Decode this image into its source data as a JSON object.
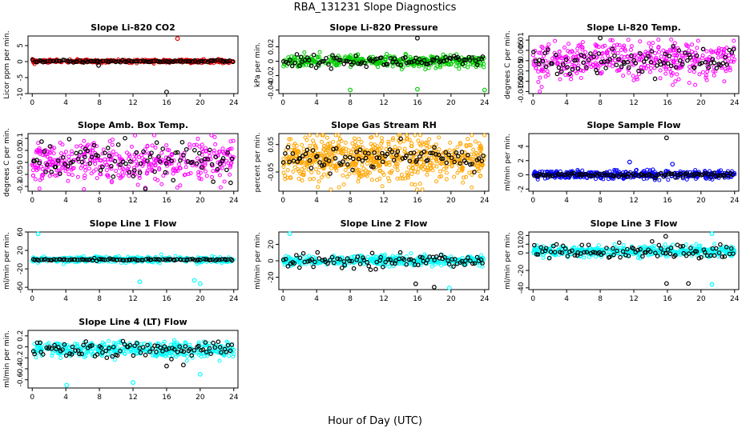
{
  "figure": {
    "title": "RBA_131231  Slope Diagnostics",
    "xlabel": "Hour of Day (UTC)"
  },
  "chart_data": [
    {
      "type": "scatter",
      "title": "Slope Li-820 CO2",
      "ylabel": "Licor ppm per min.",
      "xlim": [
        -0.5,
        24.5
      ],
      "ylim": [
        -10,
        8
      ],
      "xticks": [
        0,
        4,
        8,
        12,
        16,
        20,
        24
      ],
      "yticks": [
        -10,
        -5,
        0,
        5
      ],
      "series_color": "#e00000",
      "points_summary": {
        "center": 0.1,
        "spread": 0.25,
        "n": 420
      },
      "outliers": [
        {
          "x": 17.3,
          "y": 7.2,
          "color": "#e00000"
        },
        {
          "x": 16.0,
          "y": -9.5,
          "color": "#000000"
        },
        {
          "x": 7.9,
          "y": -1.2,
          "color": "#000000"
        }
      ],
      "black_series_spread": 0.2
    },
    {
      "type": "scatter",
      "title": "Slope Li-820 Pressure",
      "ylabel": "kPa per min.",
      "xlim": [
        -0.5,
        24.5
      ],
      "ylim": [
        -0.045,
        0.035
      ],
      "xticks": [
        0,
        4,
        8,
        12,
        16,
        20,
        24
      ],
      "yticks": [
        -0.04,
        -0.02,
        0.0,
        0.02
      ],
      "series_color": "#00cc00",
      "points_summary": {
        "center": 0.0,
        "spread": 0.004,
        "n": 420
      },
      "outliers": [
        {
          "x": 16.0,
          "y": 0.032,
          "color": "#000000"
        },
        {
          "x": 24.0,
          "y": -0.04,
          "color": "#00cc00"
        },
        {
          "x": 16.0,
          "y": -0.039,
          "color": "#00cc00"
        },
        {
          "x": 8.0,
          "y": -0.04,
          "color": "#00cc00"
        }
      ],
      "black_series_spread": 0.004
    },
    {
      "type": "scatter",
      "title": "Slope Li-820 Temp.",
      "ylabel": "degrees C per min.",
      "xlim": [
        -0.5,
        24.5
      ],
      "ylim": [
        -0.016,
        0.012
      ],
      "xticks": [
        0,
        4,
        8,
        12,
        16,
        20,
        24
      ],
      "yticks": [
        -0.015,
        -0.01,
        -0.005,
        0.0,
        0.005,
        0.01
      ],
      "series_color": "#ff00ff",
      "points_summary": {
        "center": 0.0,
        "spread": 0.0045,
        "n": 420
      },
      "outliers": [
        {
          "x": 8.0,
          "y": 0.011,
          "color": "#000000"
        }
      ],
      "black_series_spread": 0.003
    },
    {
      "type": "scatter",
      "title": "Slope Amb. Box Temp.",
      "ylabel": "degrees C per min.",
      "xlim": [
        -0.5,
        24.5
      ],
      "ylim": [
        -0.12,
        0.12
      ],
      "xticks": [
        0,
        4,
        8,
        12,
        16,
        20,
        24
      ],
      "yticks": [
        -0.1,
        -0.05,
        0.0,
        0.05,
        0.1
      ],
      "series_color": "#ff00ff",
      "points_summary": {
        "center": 0.0,
        "spread": 0.045,
        "n": 420
      },
      "outliers": [],
      "black_series_spread": 0.04
    },
    {
      "type": "scatter",
      "title": "Slope Gas Stream RH",
      "ylabel": "percent per min.",
      "xlim": [
        -0.5,
        24.5
      ],
      "ylim": [
        -0.12,
        0.09
      ],
      "xticks": [
        0,
        4,
        8,
        12,
        16,
        20,
        24
      ],
      "yticks": [
        -0.05,
        0.05
      ],
      "series_color": "#ffa500",
      "points_summary": {
        "center": 0.0,
        "spread": 0.04,
        "n": 700
      },
      "outliers": [],
      "black_series_spread": 0.02
    },
    {
      "type": "scatter",
      "title": "Slope Sample Flow",
      "ylabel": "ml/min per min.",
      "xlim": [
        -0.5,
        24.5
      ],
      "ylim": [
        -2.3,
        5.8
      ],
      "xticks": [
        0,
        4,
        8,
        12,
        16,
        20,
        24
      ],
      "yticks": [
        -2,
        0,
        2,
        4
      ],
      "series_color": "#0000ff",
      "points_summary": {
        "center": 0.0,
        "spread": 0.3,
        "n": 420
      },
      "outliers": [
        {
          "x": 15.9,
          "y": 5.2,
          "color": "#000000"
        },
        {
          "x": 11.5,
          "y": 1.8,
          "color": "#0000ff"
        },
        {
          "x": 16.6,
          "y": 1.5,
          "color": "#0000ff"
        }
      ],
      "black_series_spread": 0.15
    },
    {
      "type": "scatter",
      "title": "Slope Line 1 Flow",
      "ylabel": "ml/min per min.",
      "xlim": [
        -0.5,
        24.5
      ],
      "ylim": [
        -65,
        60
      ],
      "xticks": [
        0,
        4,
        8,
        12,
        16,
        20,
        24
      ],
      "yticks": [
        -60,
        -20,
        20,
        60
      ],
      "series_color": "#00ffff",
      "points_summary": {
        "center": 0.0,
        "spread": 3,
        "n": 420
      },
      "outliers": [
        {
          "x": 0.7,
          "y": 56,
          "color": "#00ffff"
        },
        {
          "x": 12.8,
          "y": -48,
          "color": "#00ffff"
        },
        {
          "x": 19.3,
          "y": -45,
          "color": "#00ffff"
        },
        {
          "x": 20.0,
          "y": -52,
          "color": "#00ffff"
        }
      ],
      "black_series_spread": 1
    },
    {
      "type": "scatter",
      "title": "Slope Line 2 Flow",
      "ylabel": "ml/min per min.",
      "xlim": [
        -0.5,
        24.5
      ],
      "ylim": [
        -35,
        35
      ],
      "xticks": [
        0,
        4,
        8,
        12,
        16,
        20,
        24
      ],
      "yticks": [
        -20,
        0,
        20
      ],
      "series_color": "#00ffff",
      "points_summary": {
        "center": 0.0,
        "spread": 3,
        "n": 420
      },
      "outliers": [
        {
          "x": 0.8,
          "y": 33,
          "color": "#00ffff"
        },
        {
          "x": 18.0,
          "y": -32,
          "color": "#000000"
        },
        {
          "x": 19.8,
          "y": -33,
          "color": "#00ffff"
        },
        {
          "x": 15.8,
          "y": -28,
          "color": "#000000"
        }
      ],
      "black_series_spread": 4
    },
    {
      "type": "scatter",
      "title": "Slope Line 3 Flow",
      "ylabel": "ml/min per min.",
      "xlim": [
        -0.5,
        24.5
      ],
      "ylim": [
        -42,
        24
      ],
      "xticks": [
        0,
        4,
        8,
        12,
        16,
        20,
        24
      ],
      "yticks": [
        -40,
        -20,
        0,
        10,
        20
      ],
      "series_color": "#00ffff",
      "points_summary": {
        "center": 2.0,
        "spread": 3,
        "n": 420
      },
      "outliers": [
        {
          "x": 21.3,
          "y": 22,
          "color": "#00ffff"
        },
        {
          "x": 21.3,
          "y": -36,
          "color": "#00ffff"
        },
        {
          "x": 15.9,
          "y": -35,
          "color": "#000000"
        },
        {
          "x": 18.5,
          "y": -35,
          "color": "#000000"
        },
        {
          "x": 15.8,
          "y": 19,
          "color": "#000000"
        }
      ],
      "black_series_spread": 4
    },
    {
      "type": "scatter",
      "title": "Slope Line 4 (LT) Flow",
      "ylabel": "ml/min per min.",
      "xlim": [
        -0.5,
        24.5
      ],
      "ylim": [
        -0.75,
        0.3
      ],
      "xticks": [
        0,
        4,
        8,
        12,
        16,
        20,
        24
      ],
      "yticks": [
        -0.6,
        -0.4,
        -0.2,
        0.0,
        0.2
      ],
      "series_color": "#00ffff",
      "points_summary": {
        "center": -0.05,
        "spread": 0.07,
        "n": 420
      },
      "outliers": [
        {
          "x": 4.1,
          "y": -0.7,
          "color": "#00ffff"
        },
        {
          "x": 12.0,
          "y": -0.65,
          "color": "#00ffff"
        },
        {
          "x": 20.0,
          "y": -0.5,
          "color": "#00ffff"
        },
        {
          "x": 16.0,
          "y": -0.35,
          "color": "#000000"
        },
        {
          "x": 18.0,
          "y": -0.33,
          "color": "#000000"
        }
      ],
      "black_series_spread": 0.07
    }
  ]
}
